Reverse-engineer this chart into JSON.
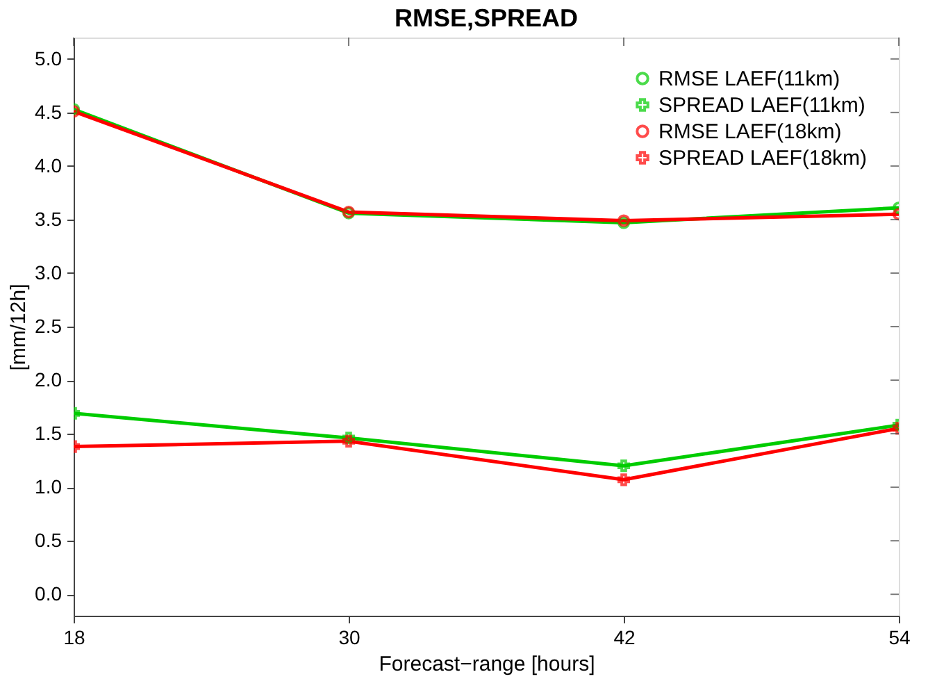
{
  "chart_data": {
    "type": "line",
    "title": "RMSE,SPREAD",
    "xlabel": "Forecast−range [hours]",
    "ylabel": "[mm/12h]",
    "x": [
      18,
      30,
      42,
      54
    ],
    "xlim": [
      18,
      54
    ],
    "xticks": [
      18,
      30,
      42,
      54
    ],
    "ylim": [
      -0.2,
      5.2
    ],
    "yticks": [
      {
        "value": 0,
        "label": "0.0"
      },
      0.5,
      {
        "value": 1,
        "label": "1.0"
      },
      1.5,
      {
        "value": 2,
        "label": "2.0"
      },
      2.5,
      {
        "value": 3,
        "label": "3.0"
      },
      3.5,
      {
        "value": 4,
        "label": "4.0"
      },
      4.5,
      {
        "value": 5,
        "label": "5.0"
      }
    ],
    "grid": false,
    "legend": "top right",
    "line_style": "solid",
    "series": [
      {
        "name": "RMSE LAEF(11km)",
        "color": "#00cc00",
        "marker": "circle",
        "values": [
          4.53,
          3.56,
          3.47,
          3.61
        ]
      },
      {
        "name": "SPREAD LAEF(11km)",
        "color": "#00cc00",
        "marker": "cross",
        "values": [
          1.69,
          1.46,
          1.2,
          1.58
        ]
      },
      {
        "name": "RMSE LAEF(18km)",
        "color": "#ff0000",
        "marker": "circle",
        "values": [
          4.51,
          3.57,
          3.49,
          3.55
        ]
      },
      {
        "name": "SPREAD LAEF(18km)",
        "color": "#ff0000",
        "marker": "cross",
        "values": [
          1.38,
          1.43,
          1.07,
          1.55
        ]
      }
    ]
  }
}
